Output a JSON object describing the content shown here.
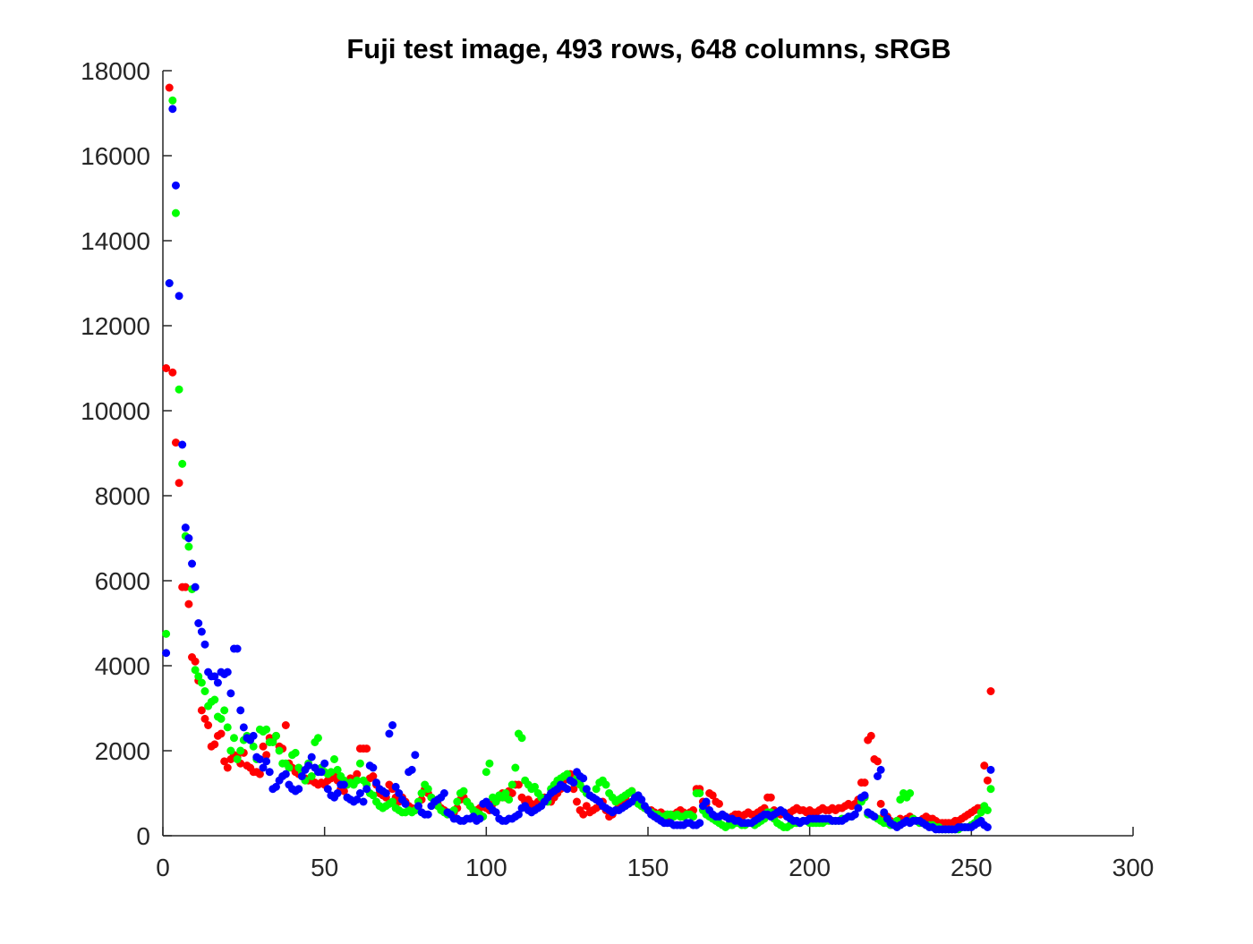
{
  "chart_data": {
    "type": "scatter",
    "title": "Fuji test image, 493 rows, 648 columns, sRGB",
    "xlim": [
      0,
      300
    ],
    "xticks": [
      0,
      50,
      100,
      150,
      200,
      250,
      300
    ],
    "ylim": [
      0,
      18000
    ],
    "yticks": [
      0,
      2000,
      4000,
      6000,
      8000,
      10000,
      12000,
      14000,
      16000,
      18000
    ],
    "x": [
      1,
      2,
      3,
      4,
      5,
      6,
      7,
      8,
      9,
      10,
      11,
      12,
      13,
      14,
      15,
      16,
      17,
      18,
      19,
      20,
      21,
      22,
      23,
      24,
      25,
      26,
      27,
      28,
      29,
      30,
      31,
      32,
      33,
      34,
      35,
      36,
      37,
      38,
      39,
      40,
      41,
      42,
      43,
      44,
      45,
      46,
      47,
      48,
      49,
      50,
      51,
      52,
      53,
      54,
      55,
      56,
      57,
      58,
      59,
      60,
      61,
      62,
      63,
      64,
      65,
      66,
      67,
      68,
      69,
      70,
      71,
      72,
      73,
      74,
      75,
      76,
      77,
      78,
      79,
      80,
      81,
      82,
      83,
      84,
      85,
      86,
      87,
      88,
      89,
      90,
      91,
      92,
      93,
      94,
      95,
      96,
      97,
      98,
      99,
      100,
      101,
      102,
      103,
      104,
      105,
      106,
      107,
      108,
      109,
      110,
      111,
      112,
      113,
      114,
      115,
      116,
      117,
      118,
      119,
      120,
      121,
      122,
      123,
      124,
      125,
      126,
      127,
      128,
      129,
      130,
      131,
      132,
      133,
      134,
      135,
      136,
      137,
      138,
      139,
      140,
      141,
      142,
      143,
      144,
      145,
      146,
      147,
      148,
      149,
      150,
      151,
      152,
      153,
      154,
      155,
      156,
      157,
      158,
      159,
      160,
      161,
      162,
      163,
      164,
      165,
      166,
      167,
      168,
      169,
      170,
      171,
      172,
      173,
      174,
      175,
      176,
      177,
      178,
      179,
      180,
      181,
      182,
      183,
      184,
      185,
      186,
      187,
      188,
      189,
      190,
      191,
      192,
      193,
      194,
      195,
      196,
      197,
      198,
      199,
      200,
      201,
      202,
      203,
      204,
      205,
      206,
      207,
      208,
      209,
      210,
      211,
      212,
      213,
      214,
      215,
      216,
      217,
      218,
      219,
      220,
      221,
      222,
      223,
      224,
      225,
      226,
      227,
      228,
      229,
      230,
      231,
      232,
      233,
      234,
      235,
      236,
      237,
      238,
      239,
      240,
      241,
      242,
      243,
      244,
      245,
      246,
      247,
      248,
      249,
      250,
      251,
      252,
      253,
      254,
      255,
      256
    ],
    "series": [
      {
        "color": "#ff0000",
        "values": [
          11000,
          17600,
          10900,
          9250,
          8300,
          5850,
          5850,
          5450,
          4200,
          4100,
          3650,
          2950,
          2750,
          2600,
          2100,
          2150,
          2350,
          2400,
          1750,
          1600,
          1800,
          1900,
          1850,
          1700,
          1950,
          1650,
          1600,
          1500,
          1500,
          1450,
          2100,
          1900,
          2300,
          2250,
          2350,
          2100,
          2050,
          2600,
          1700,
          1600,
          1500,
          1450,
          1400,
          1350,
          1300,
          1300,
          1250,
          1200,
          1250,
          1200,
          1300,
          1350,
          1400,
          1300,
          1100,
          1050,
          1250,
          1350,
          1300,
          1450,
          2050,
          2050,
          2050,
          1350,
          1400,
          1200,
          1000,
          950,
          900,
          1200,
          1100,
          900,
          800,
          900,
          800,
          700,
          650,
          600,
          700,
          850,
          1100,
          1000,
          900,
          800,
          750,
          650,
          600,
          550,
          500,
          550,
          650,
          850,
          900,
          800,
          700,
          600,
          600,
          650,
          700,
          650,
          600,
          750,
          800,
          900,
          1000,
          900,
          1050,
          1000,
          1200,
          1200,
          900,
          800,
          850,
          750,
          700,
          800,
          750,
          900,
          850,
          800,
          900,
          1000,
          1100,
          1300,
          1400,
          1450,
          1100,
          800,
          600,
          500,
          700,
          550,
          600,
          650,
          700,
          800,
          600,
          450,
          500,
          600,
          700,
          800,
          900,
          1000,
          1050,
          900,
          800,
          700,
          650,
          600,
          600,
          550,
          500,
          550,
          500,
          500,
          450,
          500,
          550,
          600,
          550,
          500,
          550,
          600,
          1100,
          1100,
          800,
          750,
          1000,
          950,
          800,
          750,
          500,
          450,
          400,
          450,
          500,
          500,
          450,
          500,
          550,
          500,
          500,
          550,
          600,
          650,
          900,
          900,
          600,
          550,
          500,
          550,
          500,
          550,
          600,
          650,
          600,
          600,
          550,
          600,
          550,
          550,
          600,
          650,
          600,
          600,
          650,
          600,
          650,
          650,
          700,
          750,
          700,
          750,
          850,
          1250,
          1250,
          2250,
          2350,
          1800,
          1750,
          750,
          500,
          450,
          350,
          300,
          350,
          400,
          350,
          400,
          450,
          400,
          350,
          350,
          400,
          450,
          400,
          400,
          350,
          300,
          300,
          300,
          300,
          300,
          350,
          350,
          400,
          450,
          500,
          550,
          600,
          650,
          650,
          1650,
          1300,
          3400
        ]
      },
      {
        "color": "#00ff00",
        "values": [
          4750,
          13000,
          17300,
          14650,
          10500,
          8750,
          7050,
          6800,
          5800,
          3900,
          3750,
          3600,
          3400,
          3050,
          3150,
          3200,
          2800,
          2750,
          2950,
          2550,
          2000,
          2300,
          1800,
          2000,
          2250,
          2350,
          2250,
          2100,
          1800,
          2500,
          2450,
          2500,
          2200,
          2200,
          2350,
          2000,
          1700,
          1700,
          1600,
          1900,
          1950,
          1600,
          1500,
          1300,
          1700,
          1400,
          2200,
          2300,
          1600,
          1500,
          1450,
          1500,
          1800,
          1550,
          1400,
          1300,
          1200,
          1250,
          1200,
          1300,
          1700,
          1300,
          1200,
          1000,
          950,
          800,
          700,
          650,
          700,
          750,
          800,
          650,
          600,
          550,
          550,
          600,
          550,
          600,
          800,
          1000,
          1200,
          1100,
          900,
          800,
          700,
          600,
          550,
          500,
          550,
          600,
          800,
          1000,
          1050,
          800,
          700,
          600,
          550,
          500,
          450,
          1500,
          1700,
          900,
          800,
          950,
          900,
          1000,
          850,
          1200,
          1600,
          2400,
          2300,
          1300,
          1200,
          1100,
          1150,
          1000,
          900,
          850,
          800,
          1100,
          1200,
          1300,
          1350,
          1400,
          1450,
          1300,
          1250,
          1350,
          1200,
          1100,
          1000,
          950,
          900,
          1100,
          1250,
          1300,
          1200,
          1000,
          900,
          800,
          850,
          900,
          950,
          1000,
          1050,
          850,
          750,
          700,
          650,
          600,
          550,
          500,
          500,
          450,
          450,
          500,
          500,
          450,
          500,
          450,
          450,
          500,
          500,
          450,
          1000,
          1000,
          600,
          500,
          450,
          400,
          350,
          300,
          250,
          200,
          250,
          250,
          300,
          300,
          250,
          250,
          300,
          300,
          250,
          300,
          350,
          400,
          550,
          550,
          400,
          300,
          250,
          200,
          200,
          250,
          300,
          300,
          300,
          350,
          350,
          300,
          300,
          300,
          300,
          300,
          350,
          350,
          350,
          350,
          350,
          400,
          400,
          450,
          450,
          500,
          650,
          800,
          900,
          500,
          500,
          450,
          400,
          350,
          300,
          300,
          250,
          300,
          350,
          850,
          1000,
          900,
          1000,
          400,
          350,
          300,
          300,
          250,
          250,
          250,
          200,
          200,
          150,
          150,
          150,
          150,
          150,
          150,
          200,
          200,
          200,
          250,
          300,
          400,
          550,
          700,
          600,
          1100
        ]
      },
      {
        "color": "#0000ff",
        "values": [
          4300,
          13000,
          17100,
          15300,
          12700,
          9200,
          7250,
          7000,
          6400,
          5850,
          5000,
          4800,
          4500,
          3850,
          3750,
          3750,
          3600,
          3850,
          3800,
          3850,
          3350,
          4400,
          4400,
          2950,
          2550,
          2300,
          2250,
          2350,
          1850,
          1800,
          1600,
          1750,
          1500,
          1100,
          1150,
          1300,
          1400,
          1450,
          1200,
          1100,
          1050,
          1100,
          1400,
          1550,
          1650,
          1850,
          1600,
          1500,
          1500,
          1700,
          1100,
          950,
          900,
          1000,
          1200,
          1200,
          900,
          850,
          800,
          850,
          1000,
          800,
          1100,
          1650,
          1600,
          1250,
          1100,
          1050,
          1000,
          2400,
          2600,
          1150,
          1000,
          850,
          750,
          1500,
          1550,
          1900,
          700,
          550,
          500,
          500,
          700,
          800,
          850,
          900,
          1000,
          550,
          500,
          400,
          400,
          350,
          350,
          400,
          400,
          450,
          350,
          400,
          750,
          800,
          700,
          600,
          550,
          400,
          350,
          350,
          400,
          400,
          450,
          500,
          650,
          700,
          600,
          550,
          600,
          650,
          700,
          800,
          900,
          1000,
          1050,
          1100,
          1200,
          1150,
          1100,
          1300,
          1250,
          1500,
          1400,
          1350,
          1100,
          950,
          900,
          850,
          800,
          700,
          650,
          600,
          550,
          600,
          600,
          650,
          700,
          750,
          800,
          900,
          950,
          850,
          700,
          600,
          500,
          450,
          400,
          350,
          300,
          300,
          300,
          250,
          250,
          250,
          250,
          300,
          300,
          250,
          250,
          300,
          700,
          800,
          600,
          500,
          450,
          450,
          500,
          450,
          400,
          400,
          350,
          350,
          300,
          300,
          300,
          300,
          350,
          400,
          450,
          500,
          500,
          450,
          500,
          550,
          600,
          550,
          450,
          400,
          350,
          350,
          300,
          350,
          350,
          400,
          400,
          400,
          400,
          400,
          400,
          400,
          350,
          350,
          350,
          350,
          400,
          450,
          450,
          500,
          650,
          900,
          950,
          550,
          500,
          450,
          1400,
          1550,
          550,
          400,
          300,
          250,
          200,
          250,
          300,
          350,
          300,
          350,
          350,
          350,
          300,
          250,
          200,
          200,
          150,
          150,
          150,
          150,
          150,
          150,
          150,
          200,
          200,
          200,
          200,
          200,
          250,
          300,
          350,
          250,
          200,
          1550
        ]
      }
    ]
  }
}
